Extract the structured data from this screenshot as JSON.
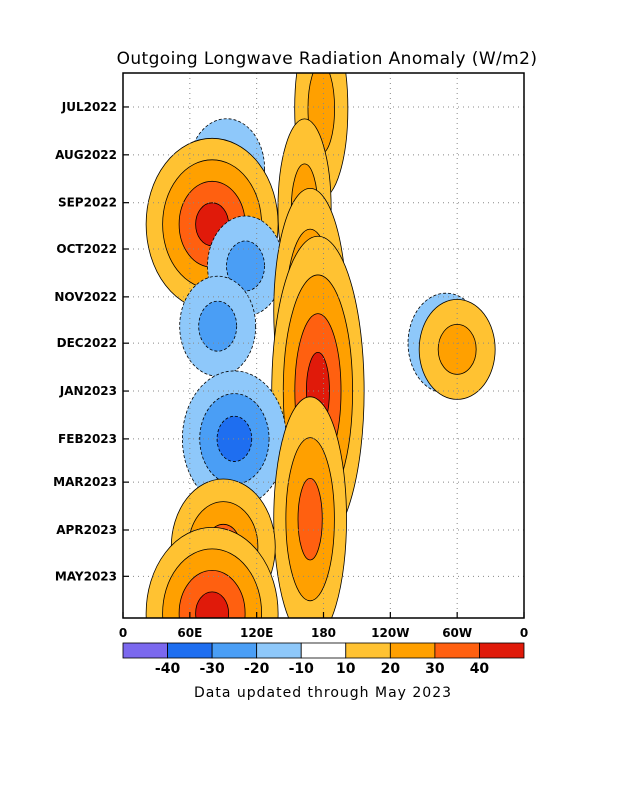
{
  "chart_data": {
    "type": "heatmap",
    "title": "Outgoing Longwave Radiation Anomaly (W/m2)",
    "xlabel": "",
    "ylabel": "",
    "x_tick_labels": [
      "0",
      "60E",
      "120E",
      "180",
      "120W",
      "60W",
      "0"
    ],
    "x_tick_values_deg_east": [
      0,
      60,
      120,
      180,
      240,
      300,
      360
    ],
    "xlim_deg_east": [
      0,
      360
    ],
    "y_tick_labels": [
      "JUL2022",
      "AUG2022",
      "SEP2022",
      "OCT2022",
      "NOV2022",
      "DEC2022",
      "JAN2023",
      "FEB2023",
      "MAR2023",
      "APR2023",
      "MAY2023"
    ],
    "y_tick_dates": [
      "2022-07-01",
      "2022-08-01",
      "2022-09-01",
      "2022-10-01",
      "2022-11-01",
      "2022-12-01",
      "2023-01-01",
      "2023-02-01",
      "2023-03-01",
      "2023-04-01",
      "2023-05-01"
    ],
    "ylim_dates": [
      "2022-06-09",
      "2023-05-28"
    ],
    "y_direction": "time increases downward",
    "grid": "dotted",
    "colorbar": {
      "orientation": "horizontal",
      "position": "bottom",
      "labels": [
        "-40",
        "-30",
        "-20",
        "-10",
        "10",
        "20",
        "30",
        "40"
      ],
      "colors": [
        "#7b68ee",
        "#1e6ef0",
        "#4a9ef5",
        "#8ec8fa",
        "#ffffff",
        "#ffc232",
        "#ffa000",
        "#ff6010",
        "#e01a0a"
      ]
    },
    "features": [
      {
        "type": "positive",
        "lon": 178,
        "date": "2022-07-02",
        "value": 20
      },
      {
        "type": "negative",
        "lon": 93,
        "date": "2022-08-10",
        "value": -20
      },
      {
        "type": "positive",
        "lon": 163,
        "date": "2022-09-05",
        "value": 20
      },
      {
        "type": "positive",
        "lon": 80,
        "date": "2022-09-15",
        "value": 40
      },
      {
        "type": "negative",
        "lon": 110,
        "date": "2022-10-12",
        "value": -20
      },
      {
        "type": "positive",
        "lon": 168,
        "date": "2022-11-10",
        "value": 30
      },
      {
        "type": "negative",
        "lon": 85,
        "date": "2022-11-20",
        "value": -20
      },
      {
        "type": "positive",
        "lon": 175,
        "date": "2023-01-01",
        "value": 40
      },
      {
        "type": "negative",
        "lon": 100,
        "date": "2023-02-01",
        "value": -30
      },
      {
        "type": "positive",
        "lon": 168,
        "date": "2023-03-25",
        "value": 30
      },
      {
        "type": "positive",
        "lon": 90,
        "date": "2023-04-12",
        "value": 30
      },
      {
        "type": "negative",
        "lon": 290,
        "date": "2022-12-01",
        "value": -20
      },
      {
        "type": "positive",
        "lon": 300,
        "date": "2022-12-05",
        "value": 20
      },
      {
        "type": "positive",
        "lon": 80,
        "date": "2023-05-25",
        "value": 40
      }
    ]
  },
  "footer": {
    "text": "Data updated through May 2023"
  },
  "colors": {
    "frame": "#000000",
    "grid": "#888888",
    "background": "#ffffff"
  }
}
